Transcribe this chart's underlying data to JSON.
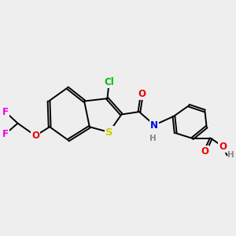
{
  "bg_color": "#eeeeee",
  "bond_color": "#000000",
  "bond_width": 1.4,
  "atom_colors": {
    "Cl": "#00bb00",
    "S": "#cccc00",
    "N": "#0000ee",
    "O": "#ee0000",
    "F": "#ee00ee",
    "H": "#888888",
    "C": "#000000"
  },
  "font_size": 8.5,
  "figsize": [
    3.0,
    3.0
  ],
  "dpi": 100
}
